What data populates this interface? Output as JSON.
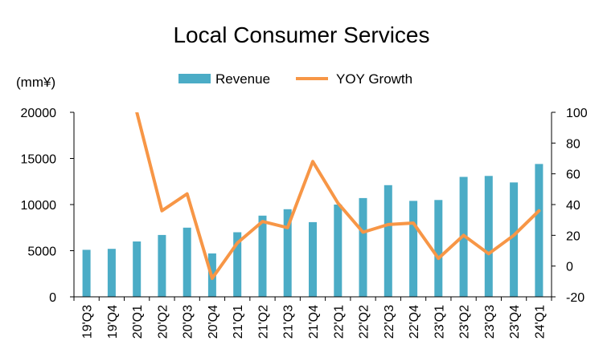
{
  "chart_data": {
    "type": "bar",
    "title": "Local Consumer Services",
    "ylabel": "(mm¥)",
    "categories": [
      "19'Q3",
      "19'Q4",
      "20'Q1",
      "20'Q2",
      "20'Q3",
      "20'Q4",
      "21'Q1",
      "21'Q2",
      "21'Q3",
      "21'Q4",
      "22'Q1",
      "22'Q2",
      "22'Q3",
      "22'Q4",
      "23'Q1",
      "23'Q2",
      "23'Q3",
      "23'Q4",
      "24'Q1"
    ],
    "series": [
      {
        "name": "Revenue",
        "type": "bar",
        "axis": "left",
        "color": "#4BACC6",
        "values": [
          5100,
          5200,
          6000,
          6700,
          7500,
          4700,
          7000,
          8800,
          9500,
          8100,
          10000,
          10700,
          12100,
          10400,
          10500,
          13000,
          13100,
          12400,
          14400
        ]
      },
      {
        "name": "YOY Growth",
        "type": "line",
        "axis": "right",
        "color": "#F79646",
        "values": [
          null,
          null,
          100,
          36,
          47,
          -8,
          15,
          29,
          25,
          68,
          41,
          22,
          27,
          28,
          5,
          20,
          8,
          20,
          36
        ]
      }
    ],
    "ylim_left": [
      0,
      20000
    ],
    "yticks_left": [
      "0",
      "5000",
      "10000",
      "15000",
      "20000"
    ],
    "ylim_right": [
      -20,
      100
    ],
    "yticks_right": [
      "-20",
      "0",
      "20",
      "40",
      "60",
      "80",
      "100"
    ],
    "legend": "top",
    "grid": false
  }
}
